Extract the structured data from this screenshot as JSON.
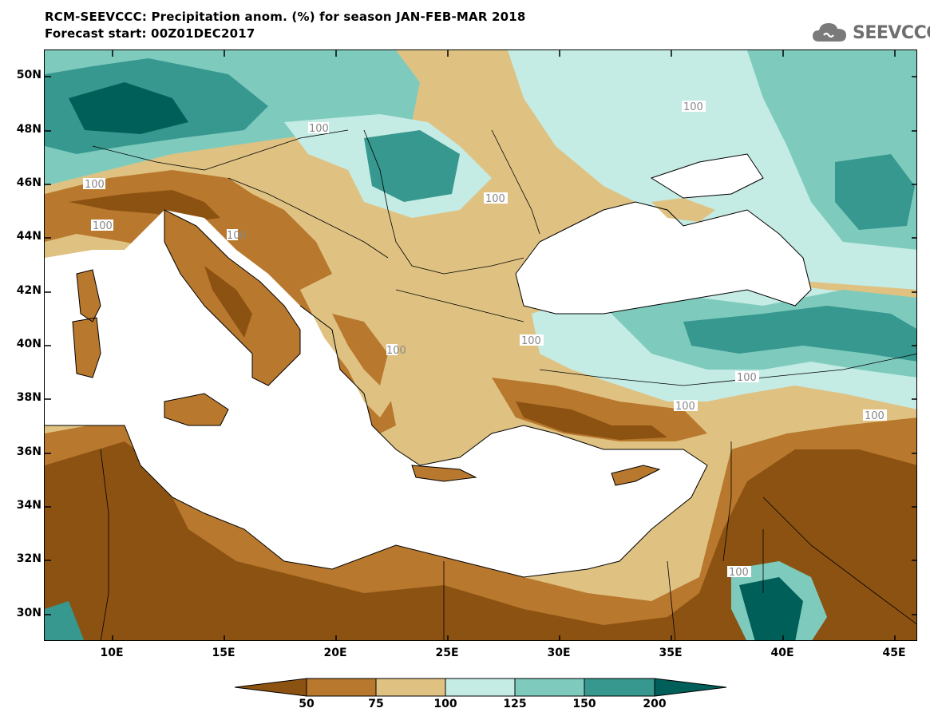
{
  "header": {
    "title_line_1": "RCM-SEEVCCC: Precipitation anom. (%) for season JAN-FEB-MAR 2018",
    "title_line_2": "Forecast start: 00Z01DEC2017"
  },
  "logo": {
    "text": "SEEVCCC",
    "icon": "cloud-icon"
  },
  "map": {
    "lat_labels": [
      "50N",
      "48N",
      "46N",
      "44N",
      "42N",
      "40N",
      "38N",
      "36N",
      "34N",
      "32N",
      "30N"
    ],
    "lon_labels": [
      "10E",
      "15E",
      "20E",
      "25E",
      "30E",
      "35E",
      "40E",
      "45E"
    ],
    "contour_labels": [
      "100",
      "100",
      "100",
      "100",
      "100",
      "100",
      "100",
      "100",
      "100",
      "100",
      "100",
      "100"
    ]
  },
  "colorbar": {
    "colors": [
      "#8c5212",
      "#b8782d",
      "#dfc282",
      "#c4ebe4",
      "#7ecbbe",
      "#37988f",
      "#005f59"
    ],
    "labels": [
      "50",
      "75",
      "100",
      "125",
      "150",
      "200"
    ]
  }
}
